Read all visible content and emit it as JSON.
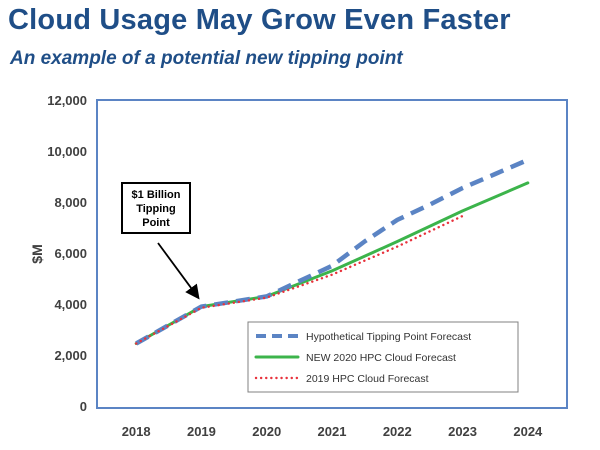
{
  "header": {
    "title": "Cloud Usage May Grow Even Faster",
    "subtitle": "An example of a potential new tipping point"
  },
  "chart_data": {
    "type": "line",
    "ylabel": "$M",
    "xlabel": "",
    "ylim": [
      0,
      12000
    ],
    "yticks": [
      0,
      2000,
      4000,
      6000,
      8000,
      10000,
      12000
    ],
    "ytick_labels": [
      "0",
      "2,000",
      "4,000",
      "6,000",
      "8,000",
      "10,000",
      "12,000"
    ],
    "xticks": [
      2018,
      2019,
      2020,
      2021,
      2022,
      2023,
      2024
    ],
    "xtick_labels": [
      "2018",
      "2019",
      "2020",
      "2021",
      "2022",
      "2023",
      "2024"
    ],
    "xlim": [
      2017.4,
      2024.6
    ],
    "grid": false,
    "legend_position": "bottom-right",
    "series": [
      {
        "name": "Hypothetical Tipping Point Forecast",
        "color": "#5b84c4",
        "style": "dashed",
        "x": [
          2018,
          2019,
          2020,
          2020.5,
          2021,
          2021.5,
          2022,
          2022.5,
          2023,
          2023.5,
          2024
        ],
        "y": [
          2450,
          3900,
          4300,
          4900,
          5500,
          6450,
          7300,
          7900,
          8550,
          9100,
          9650
        ]
      },
      {
        "name": "NEW 2020 HPC Cloud Forecast",
        "color": "#3cb44b",
        "style": "solid",
        "x": [
          2018,
          2019,
          2020,
          2021,
          2022,
          2023,
          2024
        ],
        "y": [
          2450,
          3900,
          4300,
          5300,
          6450,
          7650,
          8750
        ]
      },
      {
        "name": "2019 HPC Cloud Forecast",
        "color": "#e8323c",
        "style": "dotted",
        "x": [
          2018,
          2019,
          2020,
          2021,
          2022,
          2023
        ],
        "y": [
          2450,
          3850,
          4250,
          5150,
          6250,
          7450
        ]
      }
    ],
    "annotations": [
      {
        "text_lines": [
          "$1 Billion",
          "Tipping",
          "Point"
        ],
        "target_x": 2019,
        "target_y": 3900
      }
    ]
  }
}
